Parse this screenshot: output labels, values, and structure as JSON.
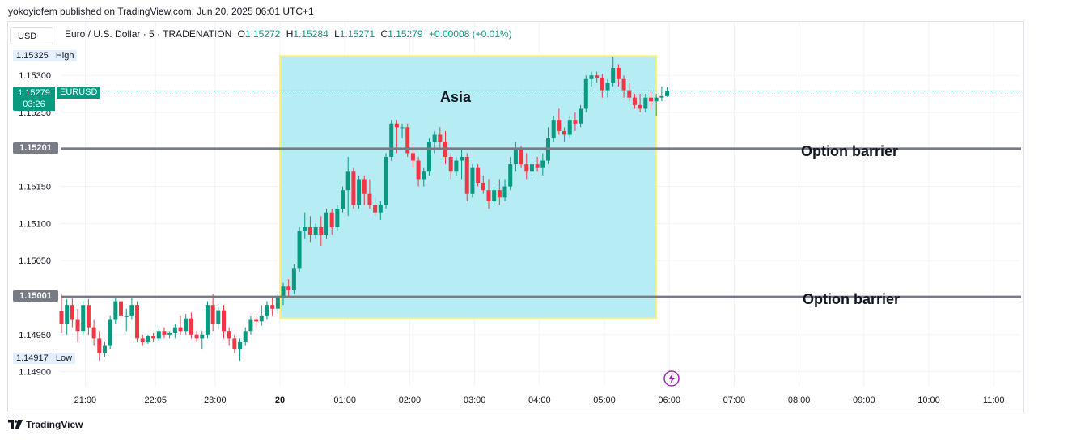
{
  "publisher_line": "yokoyiofem published on TradingView.com, Jun 20, 2025 06:01 UTC+1",
  "currency_button": "USD",
  "legend": {
    "symbol": "Euro / U.S. Dollar · 5 · TRADENATION",
    "o_label": "O",
    "o_value": "1.15272",
    "h_label": "H",
    "h_value": "1.15284",
    "l_label": "L",
    "l_value": "1.15271",
    "c_label": "C",
    "c_value": "1.15279",
    "change": "+0.00008 (+0.01%)"
  },
  "footer_logo": "TradingView",
  "colors": {
    "up": "#089981",
    "down": "#f23645",
    "box_fill": "#b2ebf2",
    "box_border": "#fff176",
    "barrier": "#787b86"
  },
  "chart_data": {
    "type": "candlestick",
    "symbol": "EURUSD",
    "ylim": [
      1.1488,
      1.1535
    ],
    "y_ticks": [
      "1.15300",
      "1.15250",
      "1.15150",
      "1.15100",
      "1.15050",
      "1.14950",
      "1.14900"
    ],
    "x_ticks": [
      "21:00",
      "22:05",
      "23:00",
      "20",
      "01:00",
      "02:00",
      "03:00",
      "04:00",
      "05:00",
      "06:00",
      "07:00",
      "08:00",
      "09:00",
      "10:00",
      "11:00"
    ],
    "x_ticks_minutes": [
      -180,
      -115,
      -60,
      0,
      60,
      120,
      180,
      240,
      300,
      360,
      420,
      480,
      540,
      600,
      660
    ],
    "high": {
      "label": "High",
      "value": "1.15325"
    },
    "low": {
      "label": "Low",
      "value": "1.14917"
    },
    "last": {
      "value": "1.15279",
      "countdown": "03:26",
      "symbol": "EURUSD"
    },
    "barriers": [
      {
        "value": 1.15201,
        "value_label": "1.15201",
        "label": "Option barrier"
      },
      {
        "value": 1.15001,
        "value_label": "1.15001",
        "label": "Option barrier"
      }
    ],
    "session_box": {
      "label": "Asia",
      "start_min": 0,
      "end_min": 360,
      "top": 1.15325,
      "bottom": 1.14972
    },
    "candles": [
      [
        -202,
        1.14982,
        1.15005,
        1.14952,
        1.14965
      ],
      [
        -197,
        1.14965,
        1.14998,
        1.1495,
        1.1499
      ],
      [
        -192,
        1.1499,
        1.15,
        1.1496,
        1.1497
      ],
      [
        -187,
        1.1497,
        1.14985,
        1.1494,
        1.14955
      ],
      [
        -182,
        1.14955,
        1.14995,
        1.1495,
        1.1499
      ],
      [
        -177,
        1.1499,
        1.14998,
        1.1495,
        1.1496
      ],
      [
        -172,
        1.1496,
        1.1497,
        1.14935,
        1.14945
      ],
      [
        -167,
        1.14945,
        1.14955,
        1.14915,
        1.14925
      ],
      [
        -162,
        1.14925,
        1.1494,
        1.1492,
        1.14935
      ],
      [
        -157,
        1.14935,
        1.14975,
        1.1493,
        1.1497
      ],
      [
        -152,
        1.1497,
        1.15,
        1.14965,
        1.14995
      ],
      [
        -147,
        1.14995,
        1.15,
        1.14965,
        1.14975
      ],
      [
        -142,
        1.14975,
        1.14985,
        1.14955,
        1.14975
      ],
      [
        -137,
        1.14975,
        1.15,
        1.1497,
        1.1499
      ],
      [
        -132,
        1.1499,
        1.14995,
        1.1494,
        1.14945
      ],
      [
        -127,
        1.14945,
        1.1495,
        1.14935,
        1.1494
      ],
      [
        -122,
        1.1494,
        1.1495,
        1.14938,
        1.14948
      ],
      [
        -117,
        1.14948,
        1.14952,
        1.1494,
        1.14945
      ],
      [
        -112,
        1.14945,
        1.14958,
        1.14942,
        1.14955
      ],
      [
        -107,
        1.14955,
        1.1496,
        1.14945,
        1.1495
      ],
      [
        -102,
        1.1495,
        1.14955,
        1.14945,
        1.14952
      ],
      [
        -97,
        1.14952,
        1.14965,
        1.14945,
        1.1496
      ],
      [
        -92,
        1.1496,
        1.14975,
        1.1495,
        1.14955
      ],
      [
        -87,
        1.14955,
        1.14978,
        1.1495,
        1.14972
      ],
      [
        -82,
        1.14972,
        1.1498,
        1.14945,
        1.1495
      ],
      [
        -77,
        1.1495,
        1.14955,
        1.1494,
        1.14945
      ],
      [
        -72,
        1.14945,
        1.14955,
        1.1493,
        1.1495
      ],
      [
        -67,
        1.1495,
        1.14995,
        1.14945,
        1.1499
      ],
      [
        -62,
        1.1499,
        1.15005,
        1.14955,
        1.14965
      ],
      [
        -57,
        1.14965,
        1.14988,
        1.14958,
        1.14983
      ],
      [
        -52,
        1.14983,
        1.1499,
        1.14945,
        1.14955
      ],
      [
        -47,
        1.14955,
        1.1496,
        1.14935,
        1.14945
      ],
      [
        -42,
        1.14945,
        1.1495,
        1.14925,
        1.1493
      ],
      [
        -37,
        1.1493,
        1.14945,
        1.14915,
        1.1494
      ],
      [
        -32,
        1.1494,
        1.1496,
        1.14935,
        1.14955
      ],
      [
        -27,
        1.14955,
        1.14975,
        1.1495,
        1.1497
      ],
      [
        -22,
        1.1497,
        1.14975,
        1.1496,
        1.14968
      ],
      [
        -17,
        1.14968,
        1.1499,
        1.14962,
        1.14975
      ],
      [
        -12,
        1.14975,
        1.14995,
        1.1497,
        1.1499
      ],
      [
        -7,
        1.1499,
        1.15,
        1.14975,
        1.14985
      ],
      [
        -2,
        1.14985,
        1.15005,
        1.14978,
        1.15
      ],
      [
        3,
        1.15,
        1.1502,
        1.1499,
        1.15015
      ],
      [
        8,
        1.15015,
        1.15025,
        1.15,
        1.1501
      ],
      [
        13,
        1.1501,
        1.15045,
        1.15005,
        1.1504
      ],
      [
        18,
        1.1504,
        1.15095,
        1.15035,
        1.1509
      ],
      [
        23,
        1.1509,
        1.15115,
        1.1508,
        1.15095
      ],
      [
        28,
        1.15095,
        1.1511,
        1.15075,
        1.15085
      ],
      [
        33,
        1.15085,
        1.151,
        1.1508,
        1.15095
      ],
      [
        38,
        1.15095,
        1.1511,
        1.1507,
        1.15085
      ],
      [
        43,
        1.15085,
        1.1512,
        1.1508,
        1.15115
      ],
      [
        48,
        1.15115,
        1.1512,
        1.15085,
        1.15095
      ],
      [
        53,
        1.15095,
        1.15125,
        1.1509,
        1.1512
      ],
      [
        58,
        1.1512,
        1.1515,
        1.15115,
        1.15145
      ],
      [
        63,
        1.15145,
        1.1519,
        1.1511,
        1.1517
      ],
      [
        68,
        1.1517,
        1.15175,
        1.1512,
        1.15125
      ],
      [
        73,
        1.15125,
        1.15165,
        1.1512,
        1.1516
      ],
      [
        78,
        1.1516,
        1.15165,
        1.15125,
        1.1514
      ],
      [
        83,
        1.1514,
        1.1516,
        1.1512,
        1.15125
      ],
      [
        88,
        1.15125,
        1.15135,
        1.1511,
        1.15115
      ],
      [
        93,
        1.15115,
        1.1513,
        1.15105,
        1.15125
      ],
      [
        98,
        1.15125,
        1.15195,
        1.1512,
        1.1519
      ],
      [
        103,
        1.1519,
        1.1524,
        1.15185,
        1.15235
      ],
      [
        108,
        1.15235,
        1.1524,
        1.15195,
        1.1523
      ],
      [
        113,
        1.1523,
        1.15235,
        1.15215,
        1.1523
      ],
      [
        118,
        1.1523,
        1.15235,
        1.1519,
        1.15195
      ],
      [
        123,
        1.15195,
        1.15205,
        1.15175,
        1.15185
      ],
      [
        128,
        1.15185,
        1.1519,
        1.1515,
        1.1516
      ],
      [
        133,
        1.1516,
        1.15175,
        1.1515,
        1.1517
      ],
      [
        138,
        1.1517,
        1.15215,
        1.15165,
        1.1521
      ],
      [
        143,
        1.1521,
        1.15225,
        1.15195,
        1.1522
      ],
      [
        148,
        1.1522,
        1.1523,
        1.152,
        1.1521
      ],
      [
        153,
        1.1521,
        1.15225,
        1.1518,
        1.1519
      ],
      [
        158,
        1.1519,
        1.15195,
        1.1516,
        1.1517
      ],
      [
        163,
        1.1517,
        1.1519,
        1.15165,
        1.15185
      ],
      [
        168,
        1.15185,
        1.152,
        1.1516,
        1.1519
      ],
      [
        173,
        1.1519,
        1.15195,
        1.1513,
        1.1514
      ],
      [
        178,
        1.1514,
        1.1518,
        1.15135,
        1.15175
      ],
      [
        183,
        1.15175,
        1.1518,
        1.1515,
        1.15155
      ],
      [
        188,
        1.15155,
        1.15165,
        1.1514,
        1.15145
      ],
      [
        193,
        1.15145,
        1.1516,
        1.1512,
        1.1513
      ],
      [
        198,
        1.1513,
        1.1515,
        1.15125,
        1.15145
      ],
      [
        203,
        1.15145,
        1.1516,
        1.15125,
        1.15135
      ],
      [
        208,
        1.15135,
        1.1516,
        1.1513,
        1.1515
      ],
      [
        213,
        1.1515,
        1.1519,
        1.15145,
        1.1518
      ],
      [
        218,
        1.1518,
        1.1521,
        1.1517,
        1.152
      ],
      [
        223,
        1.152,
        1.15205,
        1.15175,
        1.1518
      ],
      [
        228,
        1.1518,
        1.15195,
        1.1516,
        1.1517
      ],
      [
        233,
        1.1517,
        1.15185,
        1.15165,
        1.1518
      ],
      [
        238,
        1.1518,
        1.1519,
        1.1517,
        1.15175
      ],
      [
        243,
        1.15175,
        1.15195,
        1.15165,
        1.15185
      ],
      [
        248,
        1.15185,
        1.1523,
        1.1518,
        1.15215
      ],
      [
        253,
        1.15215,
        1.15245,
        1.1521,
        1.1524
      ],
      [
        258,
        1.1524,
        1.15255,
        1.1522,
        1.15225
      ],
      [
        263,
        1.15225,
        1.1523,
        1.1521,
        1.1522
      ],
      [
        268,
        1.1522,
        1.15245,
        1.15215,
        1.1524
      ],
      [
        273,
        1.1524,
        1.1525,
        1.15225,
        1.15235
      ],
      [
        278,
        1.15235,
        1.1526,
        1.1523,
        1.15255
      ],
      [
        283,
        1.15255,
        1.153,
        1.1525,
        1.15295
      ],
      [
        288,
        1.15295,
        1.15305,
        1.15285,
        1.153
      ],
      [
        293,
        1.153,
        1.15305,
        1.1529,
        1.15297
      ],
      [
        298,
        1.15297,
        1.15302,
        1.1527,
        1.1528
      ],
      [
        303,
        1.1528,
        1.15295,
        1.1527,
        1.1529
      ],
      [
        308,
        1.1529,
        1.15325,
        1.15285,
        1.1531
      ],
      [
        313,
        1.1531,
        1.15315,
        1.15285,
        1.15295
      ],
      [
        318,
        1.15295,
        1.153,
        1.1527,
        1.1528
      ],
      [
        323,
        1.1528,
        1.1529,
        1.15265,
        1.1527
      ],
      [
        328,
        1.1527,
        1.15275,
        1.15255,
        1.1526
      ],
      [
        333,
        1.1526,
        1.15275,
        1.1525,
        1.15255
      ],
      [
        338,
        1.15255,
        1.15275,
        1.1525,
        1.1527
      ],
      [
        343,
        1.1527,
        1.1528,
        1.15255,
        1.15265
      ],
      [
        348,
        1.15265,
        1.15275,
        1.15245,
        1.1527
      ],
      [
        353,
        1.1527,
        1.15285,
        1.15265,
        1.15272
      ],
      [
        358,
        1.15272,
        1.15284,
        1.15271,
        1.15279
      ]
    ]
  }
}
